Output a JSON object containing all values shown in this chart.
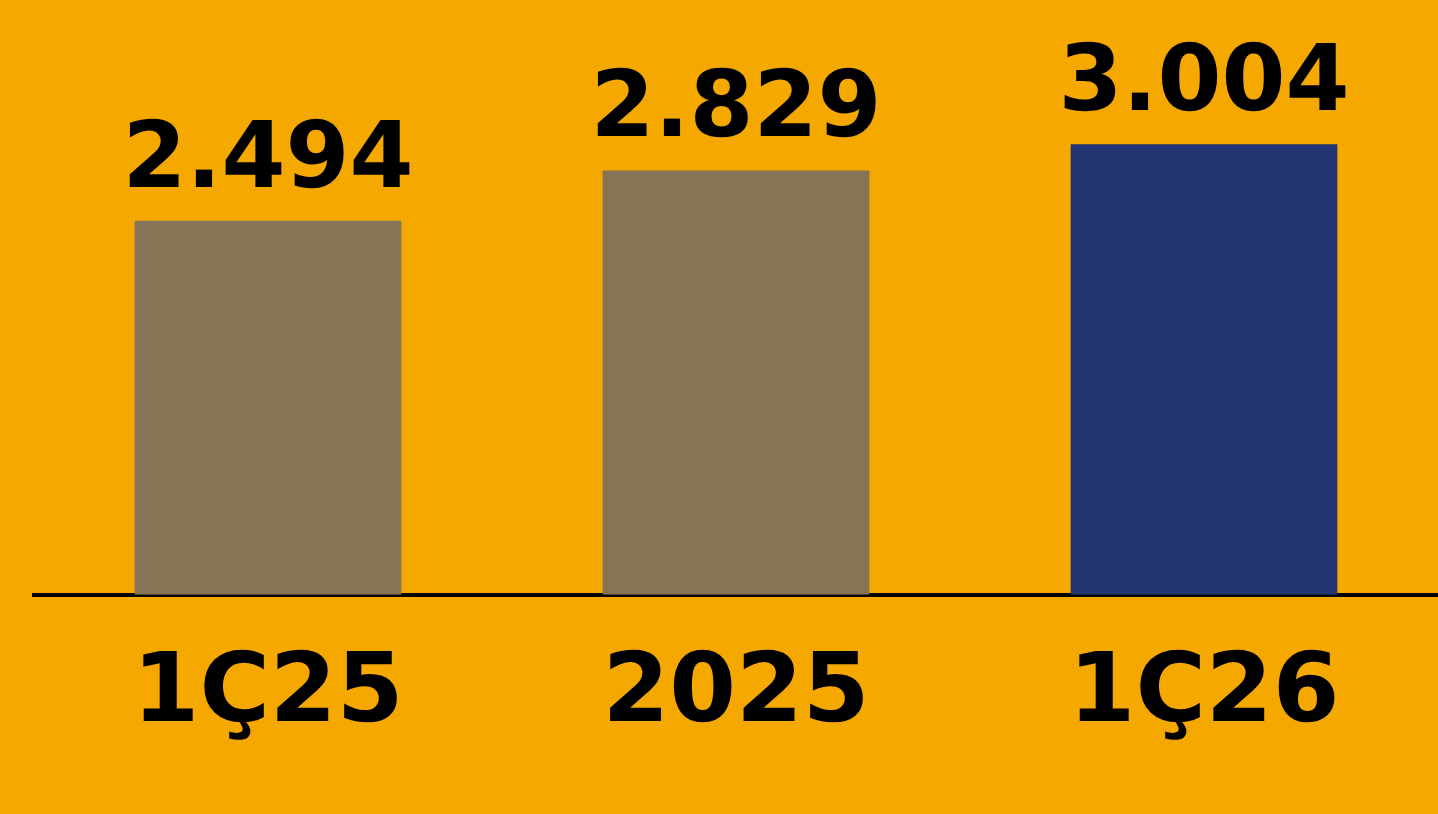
{
  "chart_data": {
    "type": "bar",
    "categories": [
      "1Ç25",
      "2025",
      "1Ç26"
    ],
    "values": [
      2494,
      2829,
      3004
    ],
    "colors": [
      "#857556",
      "#857556",
      "#233673"
    ],
    "value_labels": [
      "2.494",
      "2.829",
      "3.004"
    ],
    "grid": false,
    "legend": false,
    "tick_labels": "x"
  }
}
